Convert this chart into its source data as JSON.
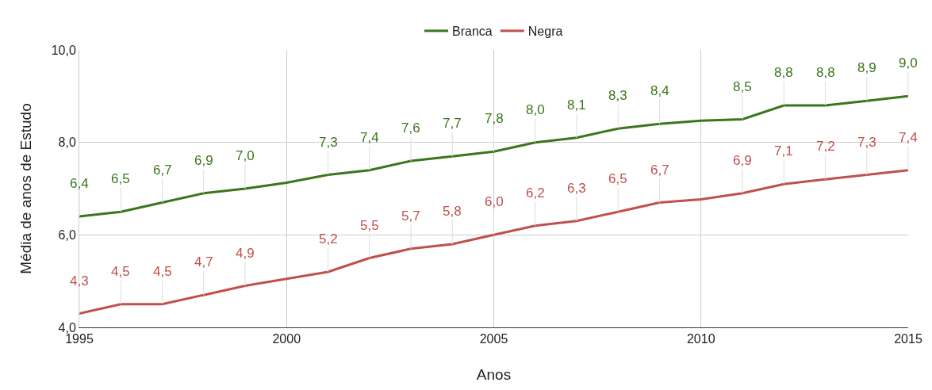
{
  "chart_data": {
    "type": "line",
    "xlabel": "Anos",
    "ylabel": "Média de anos de Estudo",
    "x": [
      1995,
      1996,
      1997,
      1998,
      1999,
      2000,
      2001,
      2002,
      2003,
      2004,
      2005,
      2006,
      2007,
      2008,
      2009,
      2010,
      2011,
      2012,
      2013,
      2014,
      2015
    ],
    "series": [
      {
        "name": "Branca",
        "color": "#3a761c",
        "values": [
          6.4,
          6.5,
          6.7,
          6.9,
          7.0,
          7.13,
          7.3,
          7.4,
          7.6,
          7.7,
          7.8,
          8.0,
          8.1,
          8.3,
          8.4,
          8.47,
          8.5,
          8.8,
          8.8,
          8.9,
          9.0
        ],
        "value_labels": [
          "6,4",
          "6,5",
          "6,7",
          "6,9",
          "7,0",
          null,
          "7,3",
          "7,4",
          "7,6",
          "7,7",
          "7,8",
          "8,0",
          "8,1",
          "8,3",
          "8,4",
          null,
          "8,5",
          "8,8",
          "8,8",
          "8,9",
          "9,0"
        ]
      },
      {
        "name": "Negra",
        "color": "#c0504d",
        "values": [
          4.3,
          4.5,
          4.5,
          4.7,
          4.9,
          5.05,
          5.2,
          5.5,
          5.7,
          5.8,
          6.0,
          6.2,
          6.3,
          6.5,
          6.7,
          6.77,
          6.9,
          7.1,
          7.2,
          7.3,
          7.4
        ],
        "value_labels": [
          "4,3",
          "4,5",
          "4,5",
          "4,7",
          "4,9",
          null,
          "5,2",
          "5,5",
          "5,7",
          "5,8",
          "6,0",
          "6,2",
          "6,3",
          "6,5",
          "6,7",
          null,
          "6,9",
          "7,1",
          "7,2",
          "7,3",
          "7,4"
        ]
      }
    ],
    "xlim": [
      1995,
      2015
    ],
    "xticks": [
      1995,
      2000,
      2005,
      2010,
      2015
    ],
    "ylim": [
      4,
      10
    ],
    "yticks": [
      {
        "value": 4,
        "label": "4,0"
      },
      {
        "value": 6,
        "label": "6,0"
      },
      {
        "value": 8,
        "label": "8,0"
      },
      {
        "value": 10,
        "label": "10,0"
      }
    ],
    "grid": true,
    "legend": "top",
    "marker": "none",
    "line_style": "solid"
  }
}
